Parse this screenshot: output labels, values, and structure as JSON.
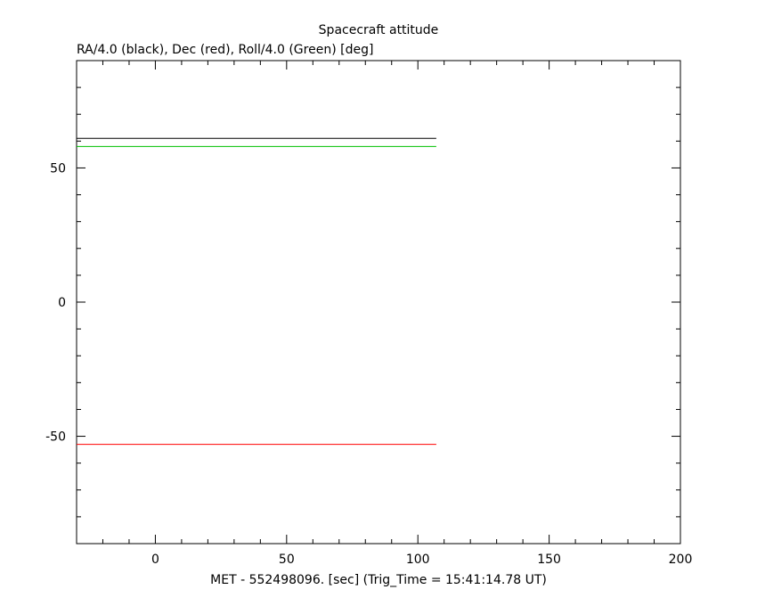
{
  "chart_data": {
    "type": "line",
    "title": "Spacecraft attitude",
    "subtitle": "RA/4.0 (black), Dec (red), Roll/4.0 (Green) [deg]",
    "xlabel": "MET - 552498096. [sec] (Trig_Time = 15:41:14.78 UT)",
    "ylabel": "",
    "xlim": [
      -30,
      200
    ],
    "ylim": [
      -90,
      90
    ],
    "x_ticks": [
      0,
      50,
      100,
      150,
      200
    ],
    "y_ticks": [
      -50,
      0,
      50
    ],
    "grid": false,
    "series": [
      {
        "name": "RA/4.0",
        "color": "#000000",
        "x": [
          -30,
          107
        ],
        "y": [
          61,
          61
        ]
      },
      {
        "name": "Dec",
        "color": "#ff0000",
        "x": [
          -30,
          107
        ],
        "y": [
          -53,
          -53
        ]
      },
      {
        "name": "Roll/4.0",
        "color": "#00c000",
        "x": [
          -30,
          107
        ],
        "y": [
          58,
          58
        ]
      }
    ]
  }
}
